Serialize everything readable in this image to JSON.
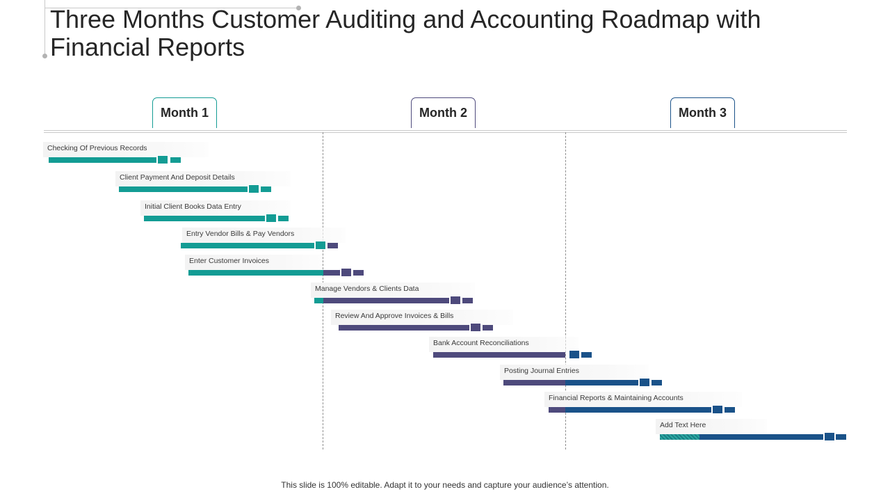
{
  "title": "Three Months Customer Auditing and Accounting Roadmap with Financial Reports",
  "months": [
    "Month 1",
    "Month 2",
    "Month 3"
  ],
  "colors": {
    "teal": "#139c94",
    "purple": "#4e4a7c",
    "blue": "#1a5289"
  },
  "tasks": [
    {
      "label": "Checking Of Previous Records"
    },
    {
      "label": "Client Payment  And Deposit Details"
    },
    {
      "label": "Initial Client Books Data Entry"
    },
    {
      "label": "Entry Vendor Bills & Pay Vendors"
    },
    {
      "label": "Enter Customer Invoices"
    },
    {
      "label": "Manage Vendors & Clients Data"
    },
    {
      "label": "Review And Approve Invoices & Bills"
    },
    {
      "label": "Bank Account Reconciliations"
    },
    {
      "label": "Posting Journal Entries"
    },
    {
      "label": "Financial Reports & Maintaining  Accounts"
    },
    {
      "label": "Add Text Here"
    }
  ],
  "footer": "This slide is 100% editable. Adapt it to your needs and capture your audience’s attention."
}
